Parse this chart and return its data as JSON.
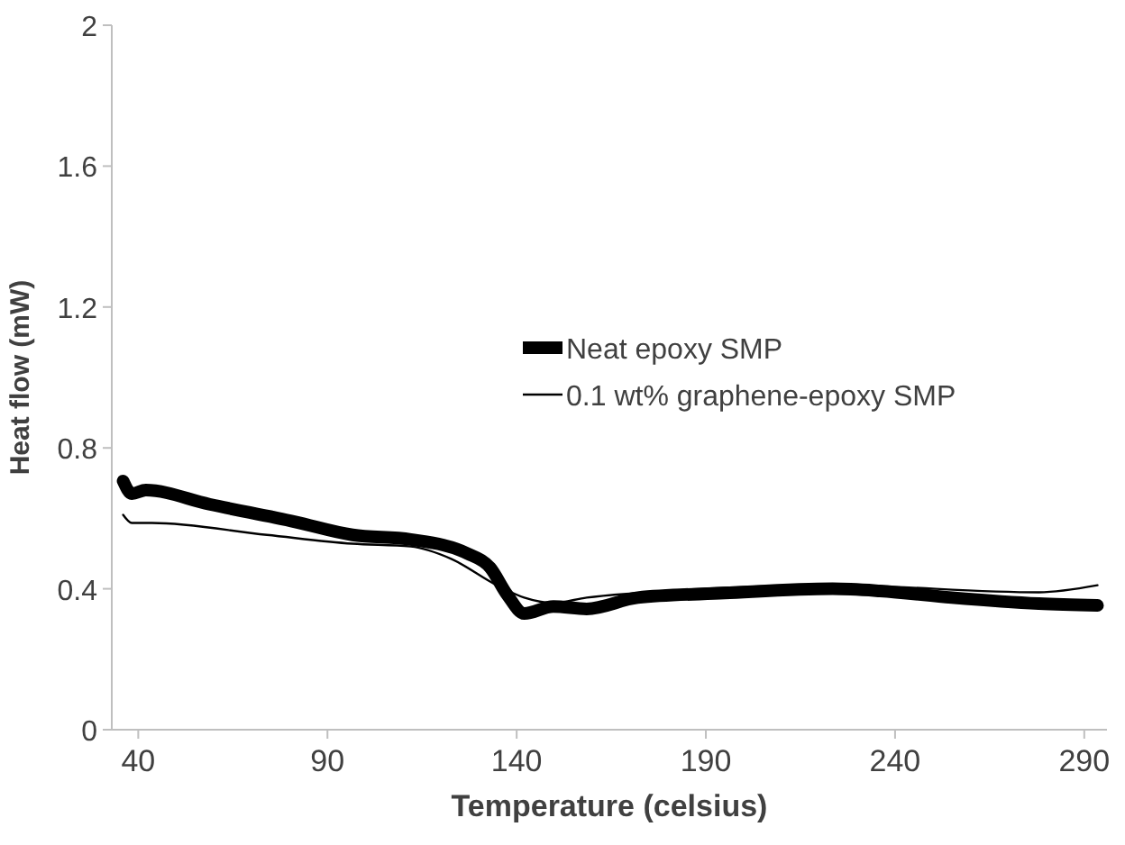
{
  "chart_data": {
    "type": "line",
    "xlabel": "Temperature (celsius)",
    "ylabel": "Heat flow (mW)",
    "xlim": [
      33,
      296
    ],
    "xticks": [
      40,
      90,
      140,
      190,
      240,
      290
    ],
    "ylim": [
      0,
      2
    ],
    "yticks": [
      0,
      0.4,
      0.8,
      1.2,
      1.6,
      2
    ],
    "grid": false,
    "legend": "center",
    "line_style": "solid",
    "marker": "none",
    "series": [
      {
        "name": "Neat epoxy SMP",
        "color": "#000000",
        "x": [
          36,
          38.3,
          42,
          58.8,
          81.5,
          96.6,
          112,
          127,
          133,
          137.5,
          142,
          149.7,
          158.5,
          172,
          195,
          223.5,
          236,
          255,
          278,
          293.5
        ],
        "values": [
          0.706,
          0.67,
          0.68,
          0.64,
          0.59,
          0.553,
          0.54,
          0.5,
          0.46,
          0.383,
          0.33,
          0.35,
          0.343,
          0.375,
          0.388,
          0.4,
          0.394,
          0.375,
          0.358,
          0.353
        ]
      },
      {
        "name": "0.1 wt% graphene-epoxy SMP",
        "color": "#000000",
        "x": [
          36,
          38.3,
          43.6,
          74,
          96.6,
          112,
          122.7,
          134.8,
          142,
          149.7,
          158.5,
          172,
          223.5,
          278,
          293.5
        ],
        "values": [
          0.61,
          0.587,
          0.587,
          0.553,
          0.528,
          0.52,
          0.485,
          0.41,
          0.375,
          0.36,
          0.375,
          0.388,
          0.41,
          0.39,
          0.41
        ]
      }
    ]
  }
}
